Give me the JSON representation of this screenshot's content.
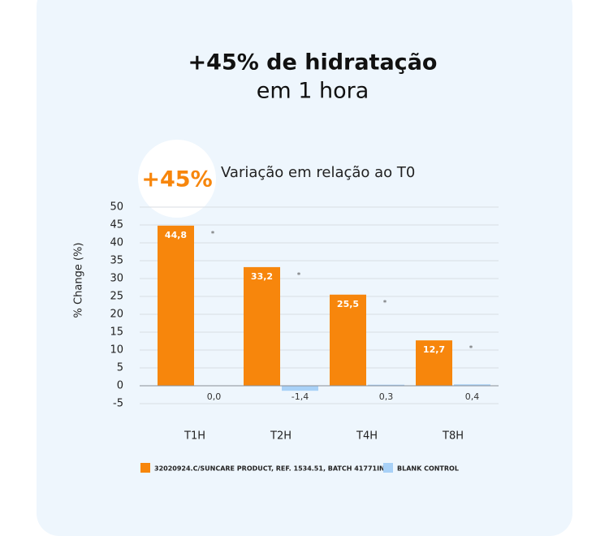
{
  "chart_data": {
    "type": "bar",
    "title": "+45% de hidratação",
    "subtitle": "em 1 hora",
    "badge": "+45%",
    "chart_title": "Variação em relação ao T0",
    "y_label": "% Change (%)",
    "categories": [
      "T1H",
      "T2H",
      "T4H",
      "T8H"
    ],
    "series": [
      {
        "name": "32020924.C/SUNCARE PRODUCT, REF. 1534.51, BATCH 41771IN",
        "color": "#f7860c",
        "values": [
          44.8,
          33.2,
          25.5,
          12.7
        ],
        "value_labels": [
          "44,8",
          "33,2",
          "25,5",
          "12,7"
        ],
        "annotations": [
          "*",
          "*",
          "*",
          "*"
        ]
      },
      {
        "name": "BLANK CONTROL",
        "color": "#a8d1f7",
        "values": [
          0.0,
          -1.4,
          0.3,
          0.4
        ],
        "value_labels": [
          "0,0",
          "-1,4",
          "0,3",
          "0,4"
        ]
      }
    ],
    "ylim": [
      -5,
      50
    ],
    "yticks": [
      -5,
      0,
      5,
      10,
      15,
      20,
      25,
      30,
      35,
      40,
      45,
      50
    ],
    "grid": true
  }
}
